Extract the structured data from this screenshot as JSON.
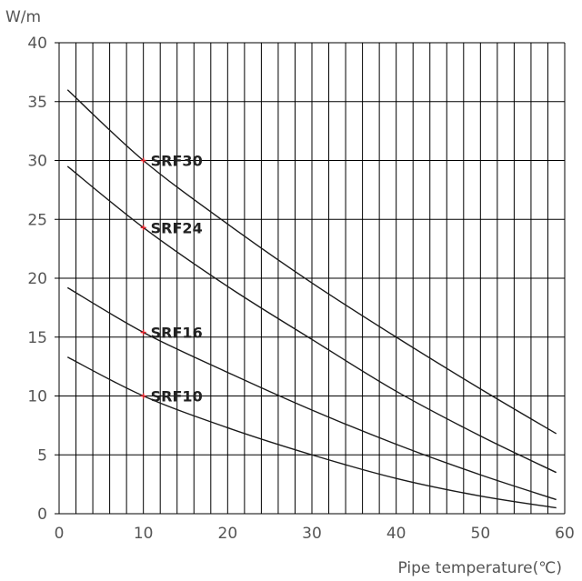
{
  "chart_data": {
    "type": "line",
    "title": "",
    "xlabel": "Pipe temperature(℃)",
    "ylabel": "W/m",
    "xlim": [
      0,
      60
    ],
    "ylim": [
      0,
      40
    ],
    "x_ticks": [
      0,
      10,
      20,
      30,
      40,
      50,
      60
    ],
    "y_ticks": [
      0,
      5,
      10,
      15,
      20,
      25,
      30,
      35,
      40
    ],
    "grid": {
      "vertical_step": 2,
      "horizontal_step": 5
    },
    "colors": {
      "line": "#1a1a1a",
      "marker": "#e0242c",
      "grid": "#000000",
      "minor_grid": "#bbbbbb"
    },
    "series": [
      {
        "name": "SRF30",
        "x": [
          1,
          10,
          20,
          30,
          40,
          50,
          59
        ],
        "y": [
          36.0,
          30.0,
          24.6,
          19.6,
          15.0,
          10.6,
          6.8
        ],
        "marker": {
          "x": 10,
          "y": 30.0
        }
      },
      {
        "name": "SRF24",
        "x": [
          1,
          10,
          20,
          30,
          40,
          50,
          59
        ],
        "y": [
          29.5,
          24.3,
          19.3,
          14.8,
          10.4,
          6.6,
          3.5
        ],
        "marker": {
          "x": 10,
          "y": 24.3
        }
      },
      {
        "name": "SRF16",
        "x": [
          1,
          10,
          20,
          30,
          40,
          50,
          59
        ],
        "y": [
          19.2,
          15.4,
          12.0,
          8.8,
          5.9,
          3.3,
          1.2
        ],
        "marker": {
          "x": 10,
          "y": 15.4
        }
      },
      {
        "name": "SRF10",
        "x": [
          1,
          10,
          20,
          30,
          40,
          50,
          59
        ],
        "y": [
          13.3,
          10.0,
          7.3,
          5.0,
          3.0,
          1.5,
          0.5
        ],
        "marker": {
          "x": 10,
          "y": 10.0
        }
      }
    ]
  }
}
